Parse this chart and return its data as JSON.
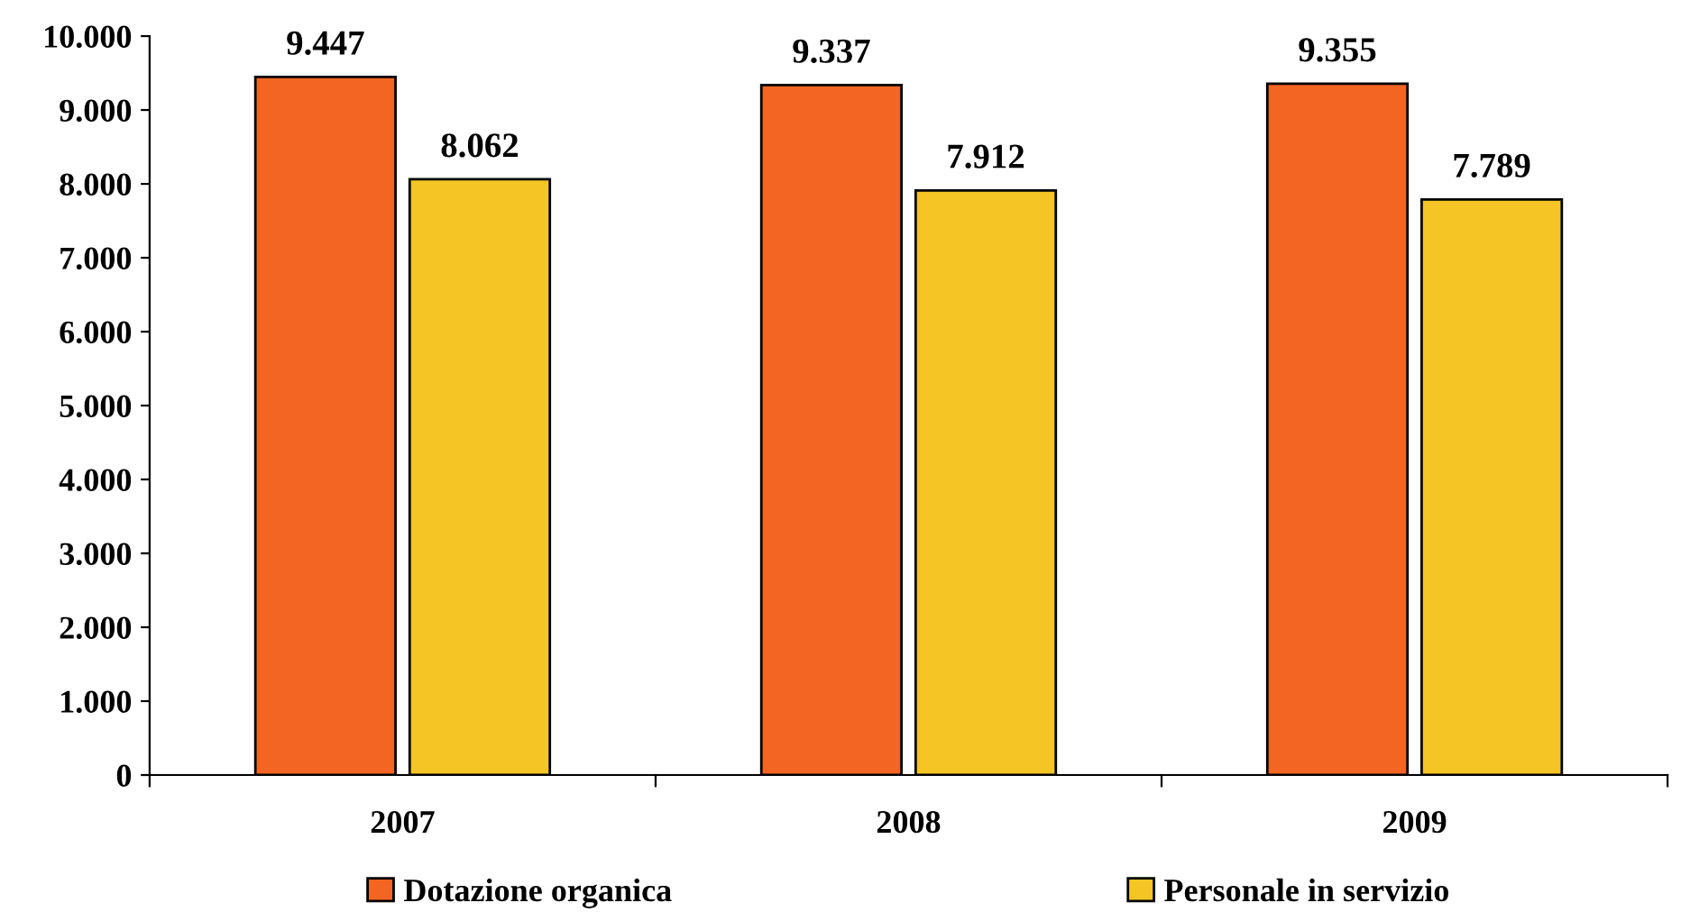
{
  "chart_data": {
    "type": "bar",
    "categories": [
      "2007",
      "2008",
      "2009"
    ],
    "series": [
      {
        "name": "Dotazione organica",
        "color": "#f26522",
        "values": [
          9447,
          9337,
          9355
        ],
        "value_labels": [
          "9.447",
          "9.337",
          "9.355"
        ]
      },
      {
        "name": "Personale in servizio",
        "color": "#f4c524",
        "values": [
          8062,
          7912,
          7789
        ],
        "value_labels": [
          "8.062",
          "7.912",
          "7.789"
        ]
      }
    ],
    "ylim": [
      0,
      10000
    ],
    "yticks": [
      {
        "value": 0,
        "label": "0"
      },
      {
        "value": 1000,
        "label": "1.000"
      },
      {
        "value": 2000,
        "label": "2.000"
      },
      {
        "value": 3000,
        "label": "3.000"
      },
      {
        "value": 4000,
        "label": "4.000"
      },
      {
        "value": 5000,
        "label": "5.000"
      },
      {
        "value": 6000,
        "label": "6.000"
      },
      {
        "value": 7000,
        "label": "7.000"
      },
      {
        "value": 8000,
        "label": "8.000"
      },
      {
        "value": 9000,
        "label": "9.000"
      },
      {
        "value": 10000,
        "label": "10.000"
      }
    ],
    "grid": false,
    "legend": "bottom"
  }
}
